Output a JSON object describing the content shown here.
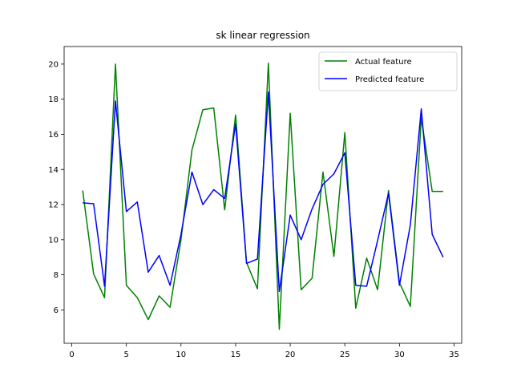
{
  "chart_data": {
    "type": "line",
    "title": "sk linear regression",
    "xlabel": "",
    "ylabel": "",
    "xlim": [
      -0.7,
      35.7
    ],
    "ylim": [
      4.1,
      21.0
    ],
    "xticks": [
      0,
      5,
      10,
      15,
      20,
      25,
      30,
      35
    ],
    "yticks": [
      6,
      8,
      10,
      12,
      14,
      16,
      18,
      20
    ],
    "grid": false,
    "legend_position": "upper right",
    "x": [
      1,
      2,
      3,
      4,
      5,
      6,
      7,
      8,
      9,
      10,
      11,
      12,
      13,
      14,
      15,
      16,
      17,
      18,
      19,
      20,
      21,
      22,
      23,
      24,
      25,
      26,
      27,
      28,
      29,
      30,
      31,
      32,
      33,
      34
    ],
    "series": [
      {
        "name": "Actual feature",
        "color": "#008000",
        "values": [
          12.8,
          8.05,
          6.7,
          20.0,
          7.4,
          6.7,
          5.45,
          6.8,
          6.15,
          10.0,
          15.1,
          17.4,
          17.5,
          11.7,
          17.1,
          8.7,
          7.2,
          20.05,
          4.9,
          17.2,
          7.15,
          7.8,
          13.85,
          9.05,
          16.1,
          6.1,
          8.95,
          7.15,
          12.8,
          7.55,
          6.2,
          16.95,
          12.75,
          12.75
        ]
      },
      {
        "name": "Predicted feature",
        "color": "#0000ff",
        "values": [
          12.1,
          12.05,
          7.35,
          17.9,
          11.6,
          12.15,
          8.15,
          9.1,
          7.4,
          10.3,
          13.85,
          12.0,
          12.85,
          12.35,
          16.6,
          8.65,
          8.9,
          18.4,
          7.05,
          11.4,
          10.0,
          11.75,
          13.15,
          13.75,
          14.95,
          7.4,
          7.35,
          9.95,
          12.65,
          7.4,
          10.85,
          17.45,
          10.3,
          9.0
        ]
      }
    ]
  }
}
